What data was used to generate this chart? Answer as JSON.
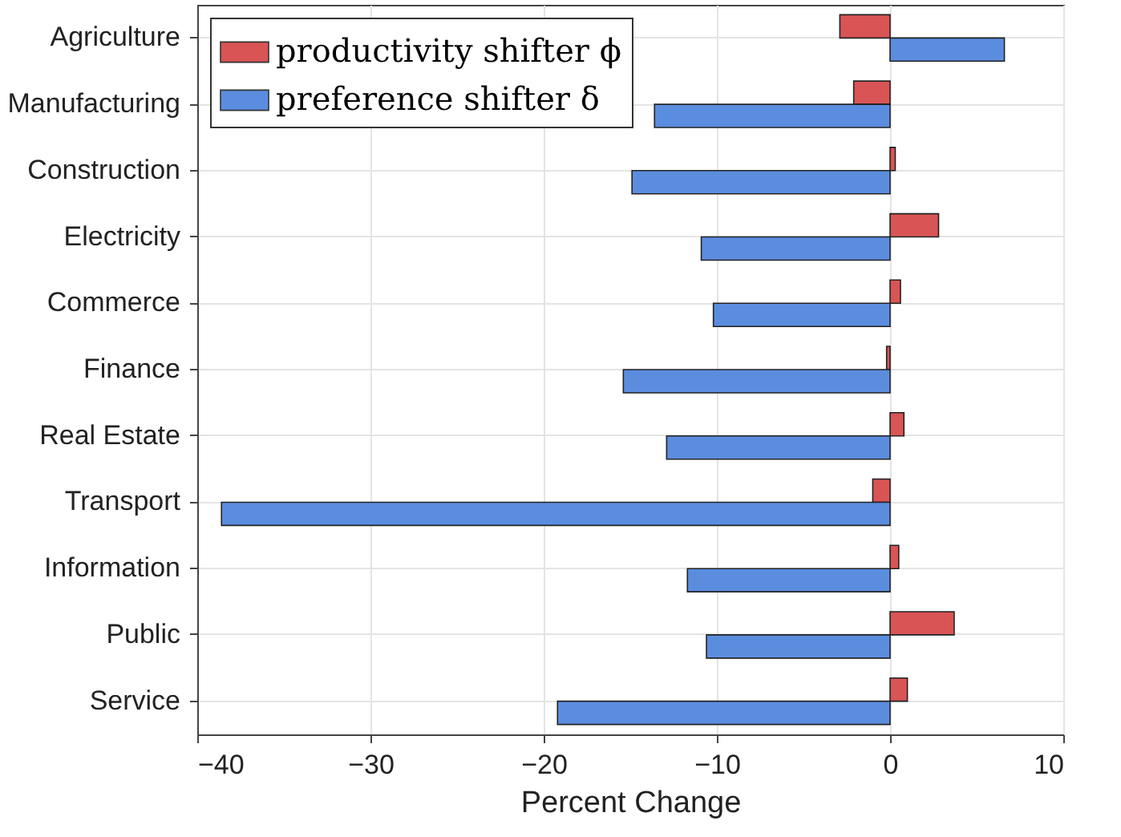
{
  "chart_data": {
    "type": "bar",
    "orientation": "horizontal",
    "xlabel": "Percent Change",
    "categories": [
      "Agriculture",
      "Manufacturing",
      "Construction",
      "Electricity",
      "Commerce",
      "Finance",
      "Real Estate",
      "Transport",
      "Information",
      "Public",
      "Service"
    ],
    "series": [
      {
        "name": "productivity shifter ϕ",
        "color": "#d95454",
        "values": [
          -2.9,
          -2.1,
          0.3,
          2.8,
          0.6,
          -0.2,
          0.8,
          -1.0,
          0.5,
          3.7,
          1.0
        ]
      },
      {
        "name": "preference shifter δ",
        "color": "#5b8ddf",
        "values": [
          6.6,
          -13.6,
          -14.9,
          -10.9,
          -10.2,
          -15.4,
          -12.9,
          -38.6,
          -11.7,
          -10.6,
          -19.2
        ]
      }
    ],
    "xlim": [
      -40,
      10
    ],
    "xticks": [
      -40,
      -30,
      -20,
      -10,
      0,
      10
    ],
    "grid": true,
    "legend": "top left"
  }
}
